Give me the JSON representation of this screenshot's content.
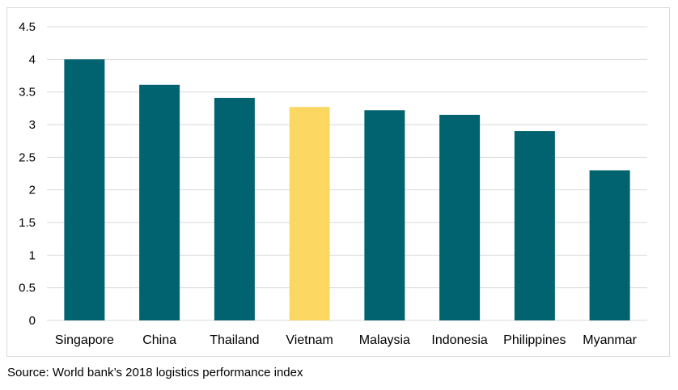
{
  "chart_data": {
    "type": "bar",
    "title": "",
    "xlabel": "",
    "ylabel": "",
    "categories": [
      "Singapore",
      "China",
      "Thailand",
      "Vietnam",
      "Malaysia",
      "Indonesia",
      "Philippines",
      "Myanmar"
    ],
    "values": [
      4.0,
      3.61,
      3.41,
      3.27,
      3.22,
      3.15,
      2.9,
      2.3
    ],
    "highlight_category": "Vietnam",
    "ylim": [
      0,
      4.5
    ],
    "yticks": [
      "0",
      "0.5",
      "1",
      "1.5",
      "2",
      "2.5",
      "3",
      "3.5",
      "4",
      "4.5"
    ],
    "grid": true,
    "legend": "none",
    "colors": {
      "bar": "#00636f",
      "highlight": "#fcd862",
      "grid": "#d9d9d9"
    }
  },
  "source": "Source: World bank’s 2018 logistics performance index"
}
